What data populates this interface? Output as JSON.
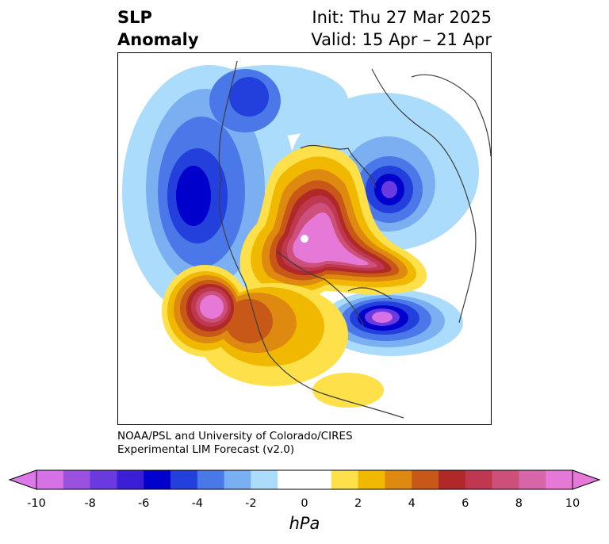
{
  "header": {
    "variable_line1": "SLP",
    "variable_line2": "Anomaly",
    "init": "Init: Thu 27 Mar 2025",
    "valid": "Valid: 15 Apr – 21 Apr"
  },
  "credit": {
    "line1": "NOAA/PSL and University of Colorado/CIRES",
    "line2": "Experimental LIM Forecast (v2.0)"
  },
  "colorbar": {
    "unit": "hPa",
    "ticks": [
      "-10",
      "-8",
      "-6",
      "-4",
      "-2",
      "0",
      "2",
      "4",
      "6",
      "8",
      "10"
    ],
    "colors": [
      "#d672e6",
      "#9c50e0",
      "#6a3ae0",
      "#3a1fd6",
      "#0000cd",
      "#233fdc",
      "#4a78e8",
      "#7ab0f2",
      "#abdcfb",
      "#ffffff",
      "#ffffff",
      "#fee04a",
      "#f1b800",
      "#de8a10",
      "#c75818",
      "#b02828",
      "#c03850",
      "#cc507a",
      "#d666a8",
      "#e678d8"
    ],
    "under_color": "#dd78e8",
    "over_color": "#e678d8"
  },
  "map_colors": {
    "land_lines": "#3c3c3c",
    "neg1": "#abdcfb",
    "neg2": "#7ab0f2",
    "neg3": "#4a78e8",
    "neg4": "#233fdc",
    "neg5": "#0000cd",
    "neg6": "#6a3ae0",
    "neg7": "#d672e6",
    "pos1": "#fee04a",
    "pos2": "#f1b800",
    "pos3": "#de8a10",
    "pos4": "#c75818",
    "pos5": "#b02828",
    "pos6": "#c03850",
    "pos7": "#cc507a",
    "pos8": "#e678d8"
  }
}
